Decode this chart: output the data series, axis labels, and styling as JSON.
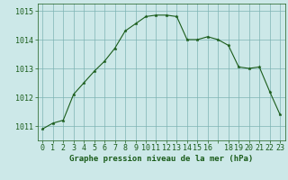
{
  "x": [
    0,
    1,
    2,
    3,
    4,
    5,
    6,
    7,
    8,
    9,
    10,
    11,
    12,
    13,
    14,
    15,
    16,
    17,
    18,
    19,
    20,
    21,
    22,
    23
  ],
  "y": [
    1010.9,
    1011.1,
    1011.2,
    1012.1,
    1012.5,
    1012.9,
    1013.25,
    1013.7,
    1014.3,
    1014.55,
    1014.8,
    1014.85,
    1014.85,
    1014.8,
    1014.0,
    1014.0,
    1014.1,
    1014.0,
    1013.8,
    1013.05,
    1013.0,
    1013.05,
    1012.2,
    1011.4
  ],
  "xlabel": "Graphe pression niveau de la mer (hPa)",
  "xtick_labels": [
    "0",
    "1",
    "2",
    "3",
    "4",
    "5",
    "6",
    "7",
    "8",
    "9",
    "10",
    "11",
    "12",
    "13",
    "14",
    "15",
    "16",
    "",
    "18",
    "19",
    "20",
    "21",
    "22",
    "23"
  ],
  "ylim": [
    1010.5,
    1015.25
  ],
  "ytick_vals": [
    1011,
    1012,
    1013,
    1014,
    1015
  ],
  "line_color": "#1a5c1a",
  "marker_color": "#1a5c1a",
  "bg_color": "#cce8e8",
  "grid_color": "#7db3b3",
  "xlabel_fontsize": 6.5,
  "tick_fontsize": 6
}
